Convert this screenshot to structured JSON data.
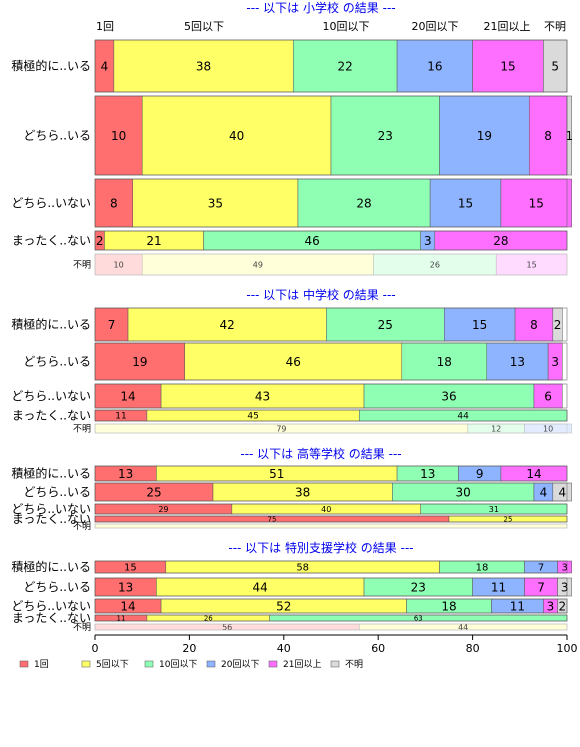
{
  "chart_data": {
    "type": "bar",
    "orientation": "horizontal-stacked-percent",
    "xlim": [
      0,
      100
    ],
    "x_ticks": [
      "0",
      "20",
      "40",
      "60",
      "80",
      "100"
    ],
    "series_names": [
      "1回",
      "5回以下",
      "10回以下",
      "20回以下",
      "21回以上",
      "不明"
    ],
    "top_column_labels": [
      "1回",
      "5回以下",
      "10回以下",
      "20回以下",
      "21回以上",
      "不明"
    ],
    "colors": [
      "#ff6f6f",
      "#ffff66",
      "#8fffb4",
      "#8fb4ff",
      "#ff6fff",
      "#dadada"
    ],
    "panels": [
      {
        "title": "--- 以下は 小学校 の結果 ---",
        "rows": [
          {
            "label": "積極的に..いる",
            "values": [
              4,
              38,
              22,
              16,
              15,
              5
            ]
          },
          {
            "label": "どちら..いる",
            "values": [
              10,
              40,
              23,
              19,
              8,
              1
            ]
          },
          {
            "label": "どちら..いない",
            "values": [
              8,
              35,
              28,
              15,
              15,
              0
            ]
          },
          {
            "label": "まったく..ない",
            "values": [
              2,
              21,
              46,
              3,
              28,
              0
            ]
          },
          {
            "label": "不明",
            "values": [
              10,
              49,
              26,
              0,
              15,
              0
            ],
            "faded": true
          }
        ]
      },
      {
        "title": "--- 以下は 中学校 の結果 ---",
        "rows": [
          {
            "label": "積極的に..いる",
            "values": [
              7,
              42,
              25,
              15,
              8,
              2
            ]
          },
          {
            "label": "どちら..いる",
            "values": [
              19,
              46,
              18,
              13,
              3,
              0
            ]
          },
          {
            "label": "どちら..いない",
            "values": [
              14,
              43,
              36,
              0,
              6,
              0
            ]
          },
          {
            "label": "まったく..ない",
            "values": [
              11,
              45,
              44,
              0,
              0,
              0
            ]
          },
          {
            "label": "不明",
            "values": [
              0,
              79,
              12,
              10,
              0,
              0
            ],
            "faded": true
          }
        ]
      },
      {
        "title": "--- 以下は 高等学校 の結果 ---",
        "rows": [
          {
            "label": "積極的に..いる",
            "values": [
              13,
              51,
              13,
              9,
              14,
              0
            ]
          },
          {
            "label": "どちら..いる",
            "values": [
              25,
              38,
              30,
              4,
              0,
              4
            ]
          },
          {
            "label": "どちら..いない",
            "values": [
              29,
              40,
              31,
              0,
              0,
              0
            ]
          },
          {
            "label": "まったく..ない",
            "values": [
              75,
              25,
              0,
              0,
              0,
              0
            ]
          },
          {
            "label": "不明",
            "values": [
              0,
              100,
              0,
              0,
              0,
              0
            ],
            "faded": true
          }
        ]
      },
      {
        "title": "--- 以下は 特別支援学校 の結果 ---",
        "rows": [
          {
            "label": "積極的に..いる",
            "values": [
              15,
              58,
              18,
              7,
              3,
              0
            ]
          },
          {
            "label": "どちら..いる",
            "values": [
              13,
              44,
              23,
              11,
              7,
              3
            ]
          },
          {
            "label": "どちら..いない",
            "values": [
              14,
              52,
              18,
              11,
              3,
              2
            ]
          },
          {
            "label": "まったく..ない",
            "values": [
              11,
              26,
              63,
              0,
              0,
              0
            ]
          },
          {
            "label": "不明",
            "values": [
              56,
              44,
              0,
              0,
              0,
              0
            ],
            "faded": true
          }
        ]
      }
    ]
  }
}
